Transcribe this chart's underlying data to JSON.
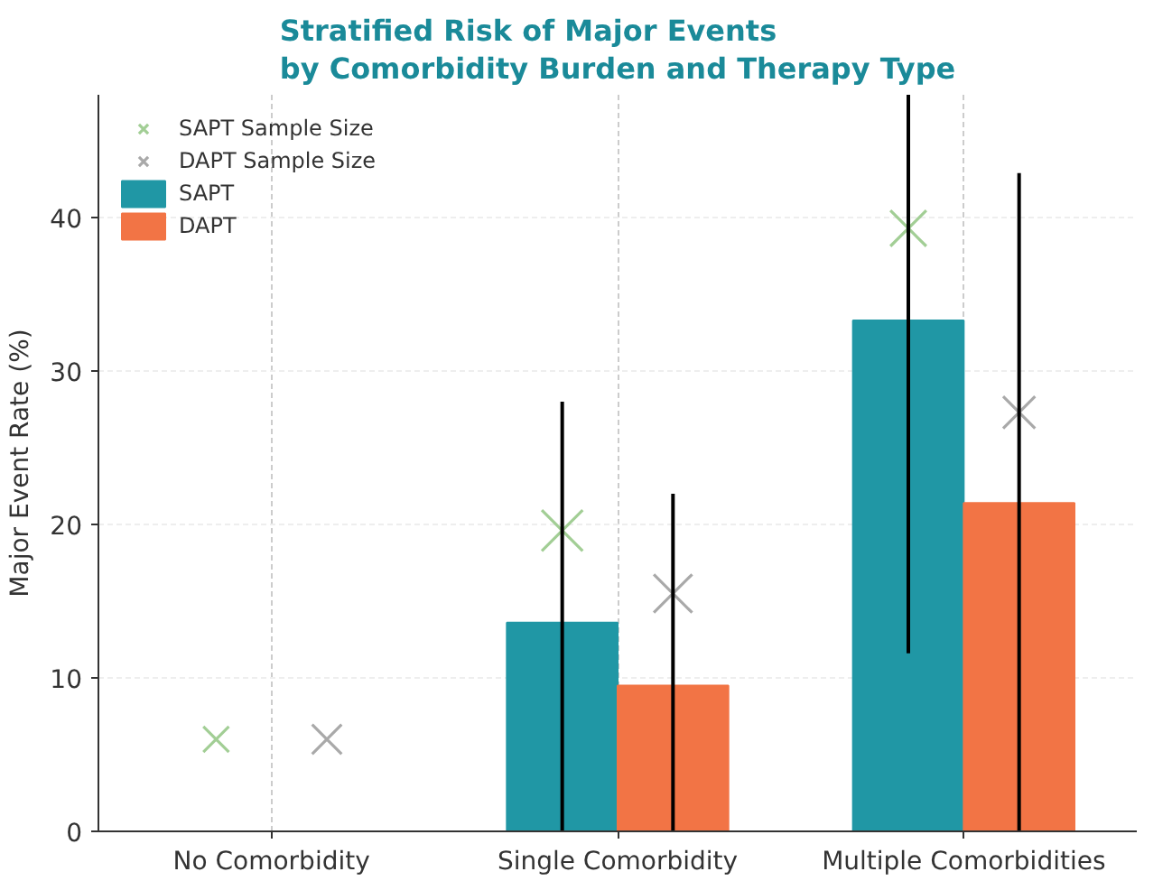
{
  "chart_data": {
    "type": "bar",
    "title": "Stratified Risk of Major Events\nby Comorbidity Burden and Therapy Type",
    "ylabel": "Major Event Rate (%)",
    "categories": [
      "No Comorbidity",
      "Single Comorbidity",
      "Multiple Comorbidities"
    ],
    "series": [
      {
        "name": "SAPT Sample Size",
        "type": "bubble",
        "color": "#98c98a",
        "values": [
          6,
          19.6,
          39.3
        ],
        "sizes": [
          0.39,
          1,
          0.77
        ]
      },
      {
        "name": "DAPT Sample Size",
        "type": "bubble",
        "color": "#a0a0a0",
        "values": [
          6,
          15.5,
          27.3
        ],
        "sizes": [
          0.52,
          0.88,
          0.61
        ]
      },
      {
        "name": "SAPT",
        "color": "#2097a5",
        "values": [
          null,
          13.6,
          33.3
        ],
        "errors": [
          null,
          [
            0,
            28
          ],
          [
            11.6,
            48
          ]
        ]
      },
      {
        "name": "DAPT",
        "color": "#f27445",
        "values": [
          null,
          9.5,
          21.4
        ],
        "errors": [
          null,
          [
            0,
            22
          ],
          [
            0,
            42.9
          ]
        ]
      }
    ],
    "marker": "cross",
    "ylim": [
      0,
      48
    ],
    "yticks": [
      0,
      10,
      20,
      30,
      40
    ],
    "grid": true,
    "legend": "top left"
  }
}
